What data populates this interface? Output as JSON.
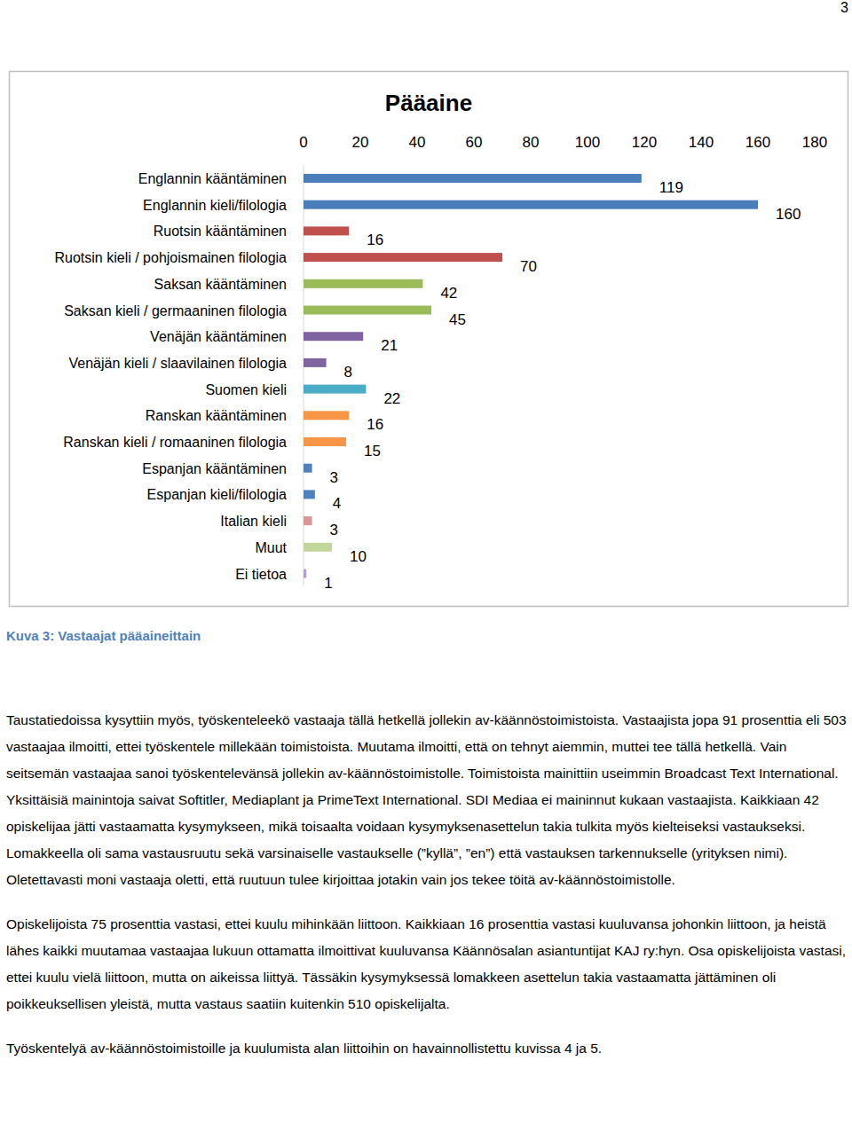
{
  "page_number": 3,
  "chart_data": {
    "type": "bar",
    "title": "Pääaine",
    "orientation": "horizontal",
    "categories": [
      "Englannin kääntäminen",
      "Englannin kieli/filologia",
      "Ruotsin kääntäminen",
      "Ruotsin kieli / pohjoismainen filologia",
      "Saksan kääntäminen",
      "Saksan kieli / germaaninen filologia",
      "Venäjän kääntäminen",
      "Venäjän kieli / slaavilainen filologia",
      "Suomen kieli",
      "Ranskan kääntäminen",
      "Ranskan kieli / romaaninen filologia",
      "Espanjan kääntäminen",
      "Espanjan kieli/filologia",
      "Italian kieli",
      "Muut",
      "Ei tietoa"
    ],
    "values": [
      119,
      160,
      16,
      70,
      42,
      45,
      21,
      8,
      22,
      16,
      15,
      3,
      4,
      3,
      10,
      1
    ],
    "colors": [
      "#4a7ebb",
      "#4a7ebb",
      "#c0504d",
      "#c0504d",
      "#9bbb59",
      "#9bbb59",
      "#8064a2",
      "#8064a2",
      "#4bacc6",
      "#f79646",
      "#f79646",
      "#4f81bd",
      "#4f81bd",
      "#d99694",
      "#c3d69b",
      "#b3a2c7"
    ],
    "xlim": [
      0,
      180
    ],
    "xticks": [
      0,
      20,
      40,
      60,
      80,
      100,
      120,
      140,
      160,
      180
    ],
    "grid": false,
    "data_labels": true,
    "tick_labels": "x"
  },
  "caption": "Kuva 3: Vastaajat pääaineittain",
  "paragraphs": [
    "Taustatiedoissa kysyttiin myös, työskenteleekö vastaaja tällä hetkellä jollekin av-käännöstoimistoista. Vastaajista jopa 91 prosenttia eli 503 vastaajaa ilmoitti, ettei työskentele millekään toimistoista. Muutama ilmoitti, että on tehnyt aiemmin, muttei tee tällä hetkellä. Vain seitsemän vastaajaa sanoi työskentelevänsä jollekin av-käännöstoimistolle. Toimistoista mainittiin useimmin Broadcast Text International. Yksittäisiä mainintoja saivat Softitler, Mediaplant ja PrimeText International. SDI Mediaa ei maininnut kukaan vastaajista. Kaikkiaan 42 opiskelijaa jätti vastaamatta kysymykseen, mikä toisaalta voidaan kysymyksenasettelun takia tulkita myös kielteiseksi vastaukseksi. Lomakkeella oli sama vastausruutu sekä varsinaiselle vastaukselle (”kyllä”, ”en”) että vastauksen tarkennukselle (yrityksen nimi). Oletettavasti moni vastaaja oletti, että ruutuun tulee kirjoittaa jotakin vain jos tekee töitä av-käännöstoimistolle.",
    "Opiskelijoista 75 prosenttia vastasi, ettei kuulu mihinkään liittoon. Kaikkiaan 16 prosenttia vastasi kuuluvansa johonkin liittoon, ja heistä lähes kaikki muutamaa vastaajaa lukuun ottamatta ilmoittivat kuuluvansa Käännösalan asiantuntijat KAJ ry:hyn. Osa opiskelijoista vastasi, ettei kuulu vielä liittoon, mutta on aikeissa liittyä. Tässäkin kysymyksessä lomakkeen asettelun takia vastaamatta jättäminen oli poikkeuksellisen yleistä, mutta vastaus saatiin kuitenkin 510 opiskelijalta.",
    "Työskentelyä av-käännöstoimistoille ja kuulumista alan liittoihin on havainnollistettu kuvissa 4 ja 5."
  ]
}
